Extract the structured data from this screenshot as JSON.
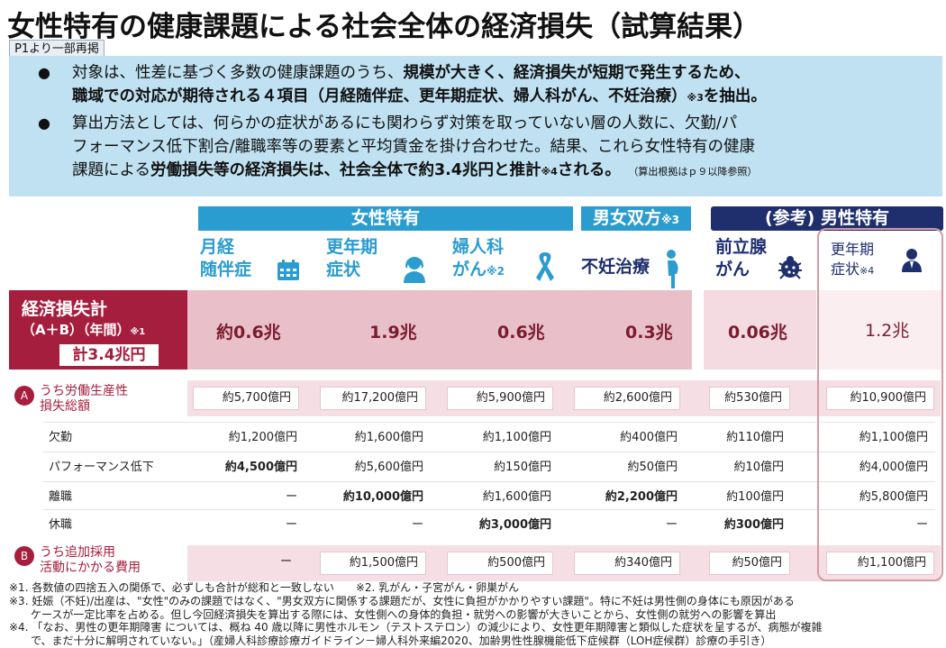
{
  "title": "女性特有の健康課題による社会全体の経済損失（試算結果）",
  "tag": "P1より一部再掲",
  "bullets": {
    "b1_l1_pre": "対象は、性差に基づく多数の健康課題のうち、",
    "b1_l1_bold": "規模が大きく、経済損失が短期で発生するため、",
    "b1_l2_bold": "職域での対応が期待される４項目（月経随伴症、更年期症状、婦人科がん、不妊治療）",
    "b1_l2_sup": "※3",
    "b1_l2_post": "を抽出。",
    "b2_l1": "算出方法としては、何らかの症状があるにも関わらず対策を取っていない層の人数に、欠勤/パ",
    "b2_l2": "フォーマンス低下割合/離職率等の要素と平均賃金を掛け合わせた。結果、これら女性特有の健康",
    "b2_l3_pre": "課題による",
    "b2_l3_bold": "労働損失等の経済損失は、社会全体で約3.4兆円と推計",
    "b2_l3_sup": "※4",
    "b2_l3_bold2": "される。",
    "b2_l3_small": "（算出根拠はｐ９以降参照）"
  },
  "bands": {
    "female": "女性特有",
    "both": "男女双方",
    "both_sup": "※3",
    "male": "(参考) 男性特有"
  },
  "columns": [
    {
      "label1": "月経",
      "label2": "随伴症",
      "sup": "",
      "icon": "calendar-icon"
    },
    {
      "label1": "更年期",
      "label2": "症状",
      "sup": "",
      "icon": "woman-icon"
    },
    {
      "label1": "婦人科",
      "label2": "がん",
      "sup": "※2",
      "icon": "ribbon-icon"
    },
    {
      "label1": "不妊治療",
      "label2": "",
      "sup": "",
      "icon": "pregnant-icon"
    },
    {
      "label1": "前立腺",
      "label2": "がん",
      "sup": "",
      "icon": "bug-icon"
    },
    {
      "label1": "更年期",
      "label2": "症状",
      "sup": "※4",
      "icon": "man-icon"
    }
  ],
  "total": {
    "label1": "経済損失計",
    "label2": "（A＋B）（年間）",
    "label2_sup": "※1",
    "sum": "計3.4兆円",
    "values": [
      "約0.6兆",
      "1.9兆",
      "0.6兆",
      "0.3兆",
      "0.06兆",
      "1.2兆"
    ]
  },
  "sectionA": {
    "badge": "A",
    "label1": "うち労働生産性",
    "label2": "損失総額",
    "values": [
      "約5,700億円",
      "約17,200億円",
      "約5,900億円",
      "約2,600億円",
      "約530億円",
      "約10,900億円"
    ],
    "rows": [
      {
        "label": "欠勤",
        "values": [
          "約1,200億円",
          "約1,600億円",
          "約1,100億円",
          "約400億円",
          "約110億円",
          "約1,100億円"
        ],
        "bold": [
          false,
          false,
          false,
          false,
          false,
          false
        ]
      },
      {
        "label": "パフォーマンス低下",
        "values": [
          "約4,500億円",
          "約5,600億円",
          "約150億円",
          "約50億円",
          "約10億円",
          "約4,000億円"
        ],
        "bold": [
          true,
          false,
          false,
          false,
          false,
          false
        ]
      },
      {
        "label": "離職",
        "values": [
          "ー",
          "約10,000億円",
          "約1,600億円",
          "約2,200億円",
          "約100億円",
          "約5,800億円"
        ],
        "bold": [
          false,
          true,
          false,
          true,
          false,
          false
        ]
      },
      {
        "label": "休職",
        "values": [
          "ー",
          "ー",
          "約3,000億円",
          "ー",
          "約300億円",
          "ー"
        ],
        "bold": [
          false,
          false,
          true,
          false,
          true,
          false
        ]
      }
    ]
  },
  "sectionB": {
    "badge": "B",
    "label1": "うち追加採用",
    "label2": "活動にかかる費用",
    "values": [
      "ー",
      "約1,500億円",
      "約500億円",
      "約340億円",
      "約50億円",
      "約1,100億円"
    ]
  },
  "notes": [
    "※1. 各数値の四捨五入の関係で、必ずしも合計が総和と一致しない　　※2. 乳がん・子宮がん・卵巣がん",
    "※3. 妊娠（不妊)/出産は、\"女性\"のみの課題ではなく、\"男女双方に関係する課題だが、女性に負担がかかりやすい課題\"。特に不妊は男性側の身体にも原因がある",
    "　　ケースが一定比率を占める。但し今回経済損失を算出する際には、女性側への身体的負担・就労への影響が大きいことから、女性側の就労への影響を算出",
    "※4. 「なお、男性の更年期障害 については、概ね 40 歳以降に男性ホルモン（テストステロン）の減少により、女性更年期障害と類似した症状を呈するが、病態が複雑",
    "　　で、まだ十分に解明されていない。」（産婦人科診療診療ガイドライン－婦人科外来編2020、加齢男性性腺機能低下症候群（LOH症候群）診療の手引き）"
  ],
  "colors": {
    "crimson": "#a61e3d",
    "female_band": "#2b9ccf",
    "male_band": "#1f2f6e",
    "blue_box": "#bfe1f1",
    "col_text": "#2b9ccf",
    "male_text": "#1f2f6e"
  }
}
